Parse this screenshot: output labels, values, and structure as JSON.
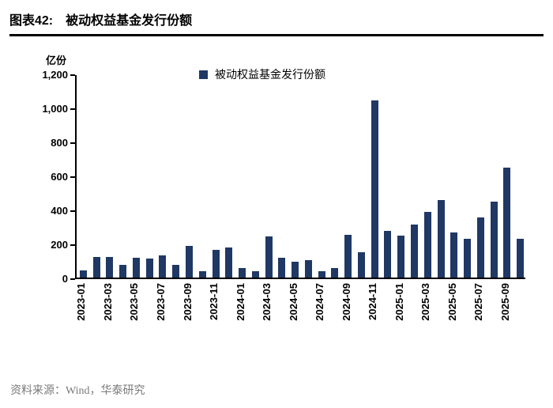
{
  "header": {
    "label": "图表42:",
    "title": "被动权益基金发行份额"
  },
  "footer": {
    "source": "资料来源：Wind，华泰研究"
  },
  "chart_data": {
    "type": "bar",
    "title": "被动权益基金发行份额",
    "unit_label": "亿份",
    "legend": [
      "被动权益基金发行份额"
    ],
    "legend_position": "top-center",
    "bar_color": "#1F3864",
    "grid": false,
    "ylim": [
      0,
      1200
    ],
    "yticks": [
      0,
      200,
      400,
      600,
      800,
      1000,
      1200
    ],
    "x_label_every": 2,
    "categories": [
      "2023-01",
      "2023-02",
      "2023-03",
      "2023-04",
      "2023-05",
      "2023-06",
      "2023-07",
      "2023-08",
      "2023-09",
      "2023-10",
      "2023-11",
      "2023-12",
      "2024-01",
      "2024-02",
      "2024-03",
      "2024-04",
      "2024-05",
      "2024-06",
      "2024-07",
      "2024-08",
      "2024-09",
      "2024-10",
      "2024-11",
      "2024-12",
      "2025-01",
      "2025-02",
      "2025-03",
      "2025-04",
      "2025-05",
      "2025-06",
      "2025-07",
      "2025-08",
      "2025-09",
      "2025-10"
    ],
    "values": [
      40,
      120,
      120,
      75,
      115,
      110,
      130,
      75,
      185,
      35,
      165,
      175,
      55,
      35,
      240,
      115,
      95,
      100,
      35,
      55,
      250,
      148,
      1040,
      275,
      245,
      310,
      385,
      455,
      265,
      230,
      355,
      445,
      645,
      230
    ]
  }
}
